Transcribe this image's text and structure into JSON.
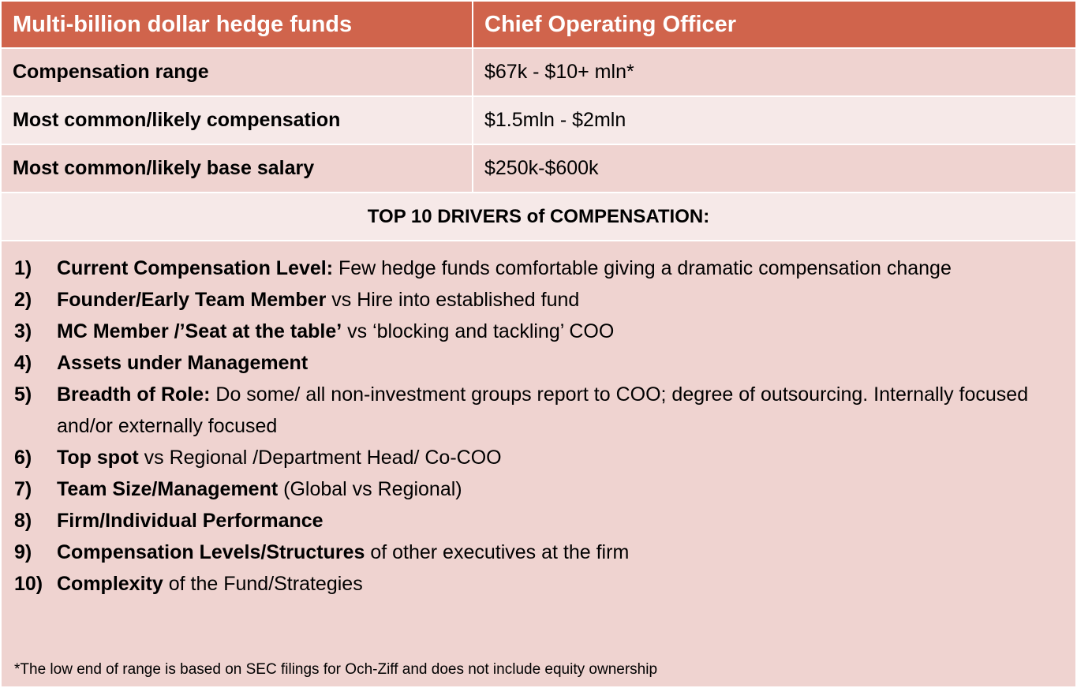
{
  "header": {
    "col1": "Multi-billion dollar hedge funds",
    "col2": "Chief Operating Officer"
  },
  "rows": [
    {
      "label": "Compensation range",
      "value": "$67k - $10+ mln*"
    },
    {
      "label": "Most common/likely compensation",
      "value": "$1.5mln - $2mln"
    },
    {
      "label": "Most common/likely base salary",
      "value": "$250k-$600k"
    }
  ],
  "drivers_title": "TOP 10 DRIVERS of COMPENSATION:",
  "drivers": [
    {
      "num": "1)",
      "bold": "Current Compensation Level:",
      "rest": " Few hedge funds comfortable giving a dramatic compensation change"
    },
    {
      "num": "2)",
      "bold": "Founder/Early Team Member",
      "rest": " vs Hire into established fund"
    },
    {
      "num": "3)",
      "bold": "MC Member /’Seat at the table’",
      "rest": " vs ‘blocking and tackling’ COO"
    },
    {
      "num": "4)",
      "bold": "Assets under Management",
      "rest": ""
    },
    {
      "num": "5)",
      "bold": "Breadth of Role:",
      "rest": " Do some/ all non-investment groups report to COO; degree of outsourcing. Internally focused and/or externally focused"
    },
    {
      "num": "6)",
      "bold": "Top spot",
      "rest": " vs Regional /Department Head/ Co-COO"
    },
    {
      "num": "7)",
      "bold": "Team Size/Management",
      "rest": " (Global vs Regional)"
    },
    {
      "num": "8)",
      "bold": "Firm/Individual Performance",
      "rest": ""
    },
    {
      "num": "9)",
      "bold": "Compensation Levels/Structures",
      "rest": " of other executives at the firm"
    },
    {
      "num": "10)",
      "bold": "Complexity",
      "rest": " of the Fund/Strategies"
    }
  ],
  "footnote": "*The low end of range is based on SEC filings for Och-Ziff and does not include equity ownership",
  "colors": {
    "header": "#D0644C",
    "row_dark": "#EFD3D0",
    "row_light": "#F6E9E8"
  }
}
